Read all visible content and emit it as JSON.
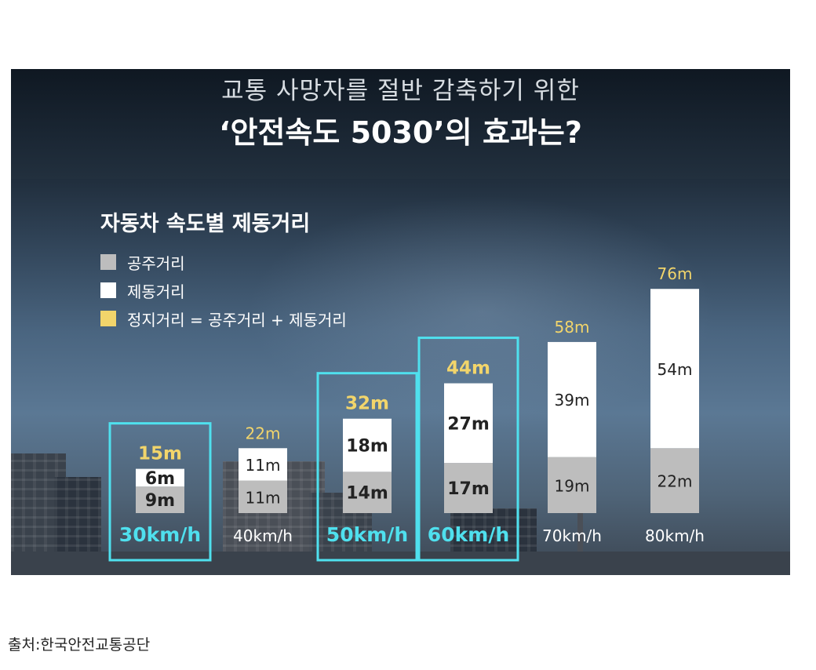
{
  "header": {
    "subtitle": "교통 사망자를 절반 감축하기 위한",
    "title": "‘안전속도 5030’의 효과는?"
  },
  "legend": {
    "items": [
      {
        "label": "공주거리",
        "color": "#bdbdbd"
      },
      {
        "label": "제동거리",
        "color": "#ffffff"
      },
      {
        "label": "정지거리 = 공주거리 + 제동거리",
        "color": "#f2d56b"
      }
    ]
  },
  "source": "출처:한국안전교통공단",
  "chart_data": {
    "type": "bar",
    "stacked": true,
    "title": "자동차 속도별 제동거리",
    "categories": [
      "30km/h",
      "40km/h",
      "50km/h",
      "60km/h",
      "70km/h",
      "80km/h"
    ],
    "series": [
      {
        "name": "공주거리",
        "values": [
          9,
          11,
          14,
          17,
          19,
          22
        ],
        "labels": [
          "9m",
          "11m",
          "14m",
          "17m",
          "19m",
          "22m"
        ],
        "color": "#bdbdbd"
      },
      {
        "name": "제동거리",
        "values": [
          6,
          11,
          18,
          27,
          39,
          54
        ],
        "labels": [
          "6m",
          "11m",
          "18m",
          "27m",
          "39m",
          "54m"
        ],
        "color": "#ffffff"
      }
    ],
    "totals": [
      15,
      22,
      32,
      44,
      58,
      76
    ],
    "total_labels": [
      "15m",
      "22m",
      "32m",
      "44m",
      "58m",
      "76m"
    ],
    "highlighted": [
      "30km/h",
      "50km/h",
      "60km/h"
    ],
    "highlight_color": "#4fe0ee",
    "total_color": "#f2d56b",
    "ylim": [
      0,
      80
    ],
    "grid": false,
    "legend_position": "top-left"
  }
}
